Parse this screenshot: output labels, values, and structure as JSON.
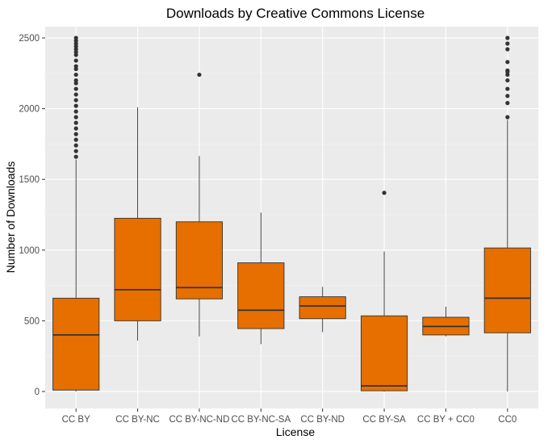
{
  "chart_data": {
    "type": "boxplot",
    "title": "Downloads by Creative Commons License",
    "xlabel": "License",
    "ylabel": "Number of Downloads",
    "ylim": [
      -120,
      2580
    ],
    "yticks": [
      0,
      500,
      1000,
      1500,
      2000,
      2500
    ],
    "grid": true,
    "legend": "none",
    "colors": {
      "panel": "#ebebeb",
      "grid_major": "#ffffff",
      "grid_minor": "#f5f5f5",
      "box_fill": "#e66f00",
      "box_line": "#333333",
      "outlier": "#333333",
      "tick_text": "#4d4d4d"
    },
    "categories": [
      "CC BY",
      "CC BY-NC",
      "CC BY-NC-ND",
      "CC BY-NC-SA",
      "CC BY-ND",
      "CC BY-SA",
      "CC BY + CC0",
      "CC0"
    ],
    "boxes": [
      {
        "category": "CC BY",
        "min": 0,
        "q1": 10,
        "median": 400,
        "q3": 660,
        "max": 1640,
        "outliers": [
          1660,
          1700,
          1740,
          1780,
          1820,
          1860,
          1900,
          1940,
          1980,
          2020,
          2060,
          2100,
          2140,
          2180,
          2200,
          2240,
          2280,
          2300,
          2340,
          2380,
          2400,
          2420,
          2440,
          2460,
          2480,
          2500
        ]
      },
      {
        "category": "CC BY-NC",
        "min": 360,
        "q1": 500,
        "median": 720,
        "q3": 1225,
        "max": 2010,
        "outliers": []
      },
      {
        "category": "CC BY-NC-ND",
        "min": 390,
        "q1": 655,
        "median": 735,
        "q3": 1200,
        "max": 1665,
        "outliers": [
          2240
        ]
      },
      {
        "category": "CC BY-NC-SA",
        "min": 335,
        "q1": 445,
        "median": 575,
        "q3": 910,
        "max": 1265,
        "outliers": []
      },
      {
        "category": "CC BY-ND",
        "min": 420,
        "q1": 515,
        "median": 605,
        "q3": 670,
        "max": 740,
        "outliers": []
      },
      {
        "category": "CC BY-SA",
        "min": 0,
        "q1": 5,
        "median": 40,
        "q3": 535,
        "max": 990,
        "outliers": [
          1405
        ]
      },
      {
        "category": "CC BY + CC0",
        "min": 390,
        "q1": 400,
        "median": 460,
        "q3": 525,
        "max": 600,
        "outliers": []
      },
      {
        "category": "CC0",
        "min": 0,
        "q1": 415,
        "median": 660,
        "q3": 1015,
        "max": 1920,
        "outliers": [
          1940,
          2040,
          2090,
          2140,
          2200,
          2240,
          2260,
          2270,
          2330,
          2420,
          2460,
          2500
        ]
      }
    ]
  }
}
